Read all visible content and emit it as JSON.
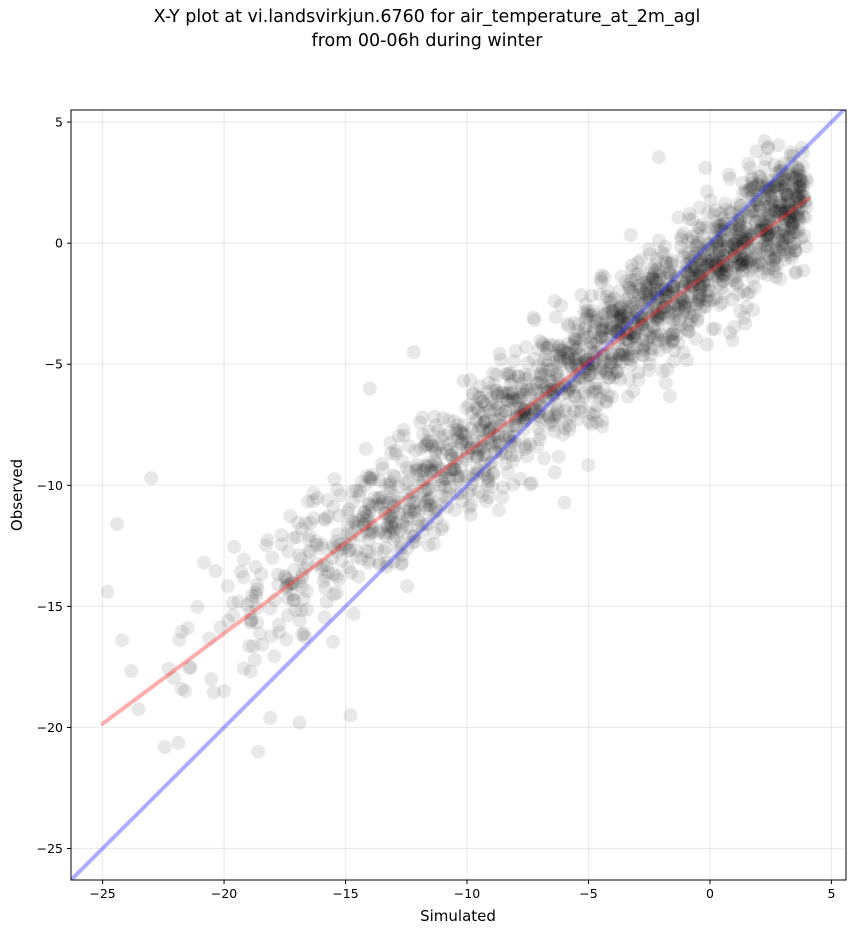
{
  "chart_data": {
    "type": "scatter",
    "title_lines": [
      "X-Y plot at vi.landsvirkjun.6760 for air_temperature_at_2m_agl",
      "from 00-06h during winter"
    ],
    "xlabel": "Simulated",
    "ylabel": "Observed",
    "xlim": [
      -26.3,
      5.6
    ],
    "ylim": [
      -26.3,
      5.5
    ],
    "xticks": [
      -25,
      -20,
      -15,
      -10,
      -5,
      0,
      5
    ],
    "yticks": [
      -25,
      -20,
      -15,
      -10,
      -5,
      0,
      5
    ],
    "tick_labels": [
      "−25",
      "−20",
      "−15",
      "−10",
      "−5",
      "0",
      "5"
    ],
    "grid": true,
    "point_color": "#000000",
    "point_opacity": 0.09,
    "reference_line": {
      "color": "#3333ff",
      "opacity": 0.4,
      "x": [
        -26.3,
        5.6
      ],
      "y": [
        -26.3,
        5.6
      ]
    },
    "fit_line": {
      "color": "#ff3333",
      "opacity": 0.4,
      "x": [
        -25,
        4.05
      ],
      "y": [
        -19.85,
        1.85
      ]
    },
    "point_model": {
      "count": 1900,
      "x_range": [
        -25.0,
        4.0
      ],
      "approx_relation": "observed ≈ 0.75 × simulated − 1.0",
      "noise_sd": 1.3
    },
    "outliers": [
      {
        "x": -18.6,
        "y": -21.0
      },
      {
        "x": -14.8,
        "y": -19.5
      },
      {
        "x": -2.1,
        "y": 3.55
      },
      {
        "x": -24.8,
        "y": -14.4
      },
      {
        "x": -24.4,
        "y": -11.6
      },
      {
        "x": -23.0,
        "y": -9.7
      },
      {
        "x": -24.2,
        "y": -16.4
      },
      {
        "x": -16.9,
        "y": -19.8
      },
      {
        "x": -18.1,
        "y": -19.6
      },
      {
        "x": -20.0,
        "y": -18.5
      },
      {
        "x": -21.6,
        "y": -18.5
      },
      {
        "x": -14.0,
        "y": -6.0
      },
      {
        "x": -12.2,
        "y": -4.5
      }
    ]
  }
}
